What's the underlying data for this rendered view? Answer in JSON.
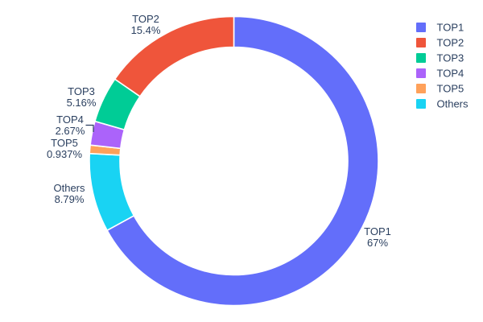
{
  "chart_data": {
    "type": "pie",
    "subtype": "donut",
    "title": "",
    "labels": [
      "TOP1",
      "TOP2",
      "TOP3",
      "TOP4",
      "TOP5",
      "Others"
    ],
    "values": [
      67,
      15.4,
      5.16,
      2.67,
      0.937,
      8.79
    ],
    "percent_labels": [
      "67%",
      "15.4%",
      "5.16%",
      "2.67%",
      "0.937%",
      "8.79%"
    ],
    "colors": [
      "#636EFA",
      "#EF553B",
      "#00CC96",
      "#AB63FA",
      "#FFA15A",
      "#19D3F3"
    ],
    "hole": 0.79,
    "rotation_deg": 0,
    "clockwise_order": [
      "TOP1",
      "Others",
      "TOP5",
      "TOP4",
      "TOP3",
      "TOP2"
    ],
    "labels_position": "outside",
    "legend": {
      "position": "right",
      "entries": [
        "TOP1",
        "TOP2",
        "TOP3",
        "TOP4",
        "TOP5",
        "Others"
      ]
    },
    "text_color": "#2a3f5f",
    "background_color": "#ffffff"
  }
}
